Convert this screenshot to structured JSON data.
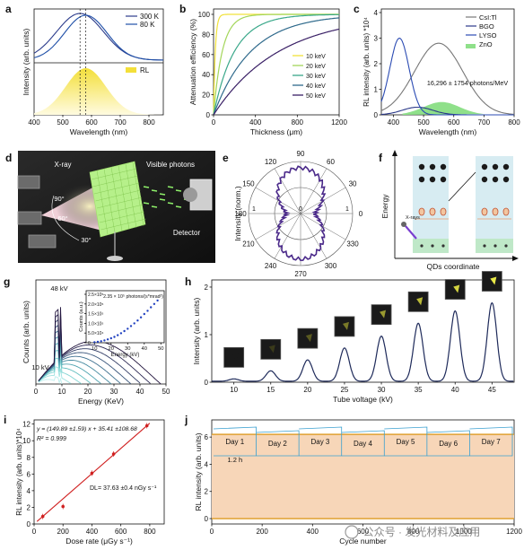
{
  "chart_data": [
    {
      "panel": "a",
      "type": "line",
      "ylabel": "Intensity (arb. units)",
      "xlabel": "Wavelength (nm)",
      "xlim": [
        400,
        850
      ],
      "xticks": [
        "400",
        "500",
        "600",
        "700",
        "800"
      ],
      "legend_top": [
        {
          "name": "300 K",
          "color": "#2d3d8c"
        },
        {
          "name": "80 K",
          "color": "#2050a8"
        }
      ],
      "legend_bottom": [
        {
          "name": "RL",
          "color": "#f3df3a"
        }
      ],
      "series": [
        {
          "name": "300 K",
          "peak": 560,
          "sigma": 82
        },
        {
          "name": "80 K",
          "peak": 580,
          "sigma": 74
        },
        {
          "name": "RL",
          "peak": 580,
          "sigma": 70
        }
      ]
    },
    {
      "panel": "b",
      "type": "line",
      "ylabel": "Attenuation efficiency (%)",
      "xlabel": "Thickness (μm)",
      "xlim": [
        0,
        1200
      ],
      "ylim": [
        0,
        100
      ],
      "xticks": [
        "0",
        "400",
        "800",
        "1200"
      ],
      "yticks": [
        "0",
        "20",
        "40",
        "60",
        "80",
        "100"
      ],
      "series": [
        {
          "name": "10 keV",
          "color": "#f1e23a",
          "mu": 0.06
        },
        {
          "name": "20 keV",
          "color": "#a3d65a",
          "mu": 0.012
        },
        {
          "name": "30 keV",
          "color": "#3aa88a",
          "mu": 0.005
        },
        {
          "name": "40 keV",
          "color": "#2f6a8c",
          "mu": 0.0028
        },
        {
          "name": "50 keV",
          "color": "#3a2066",
          "mu": 0.0016
        }
      ]
    },
    {
      "panel": "c",
      "type": "line",
      "ylabel": "RL intensity (arb. units) *10⁴",
      "xlabel": "Wavelength (nm)",
      "xlim": [
        360,
        800
      ],
      "ylim": [
        0,
        4
      ],
      "xticks": [
        "400",
        "500",
        "600",
        "700",
        "800"
      ],
      "yticks": [
        "0",
        "1",
        "2",
        "3",
        "4"
      ],
      "annotation": "16,296 ± 1754 photons/MeV",
      "series": [
        {
          "name": "CsI:Tl",
          "color": "#777777",
          "peak": 550,
          "height": 2.8,
          "sigma": 80
        },
        {
          "name": "BGO",
          "color": "#2c3a8a",
          "peak": 480,
          "height": 0.3,
          "sigma": 50
        },
        {
          "name": "LYSO",
          "color": "#2b4bb3",
          "peak": 420,
          "height": 3.0,
          "sigma": 32
        },
        {
          "name": "ZnO",
          "color": "#43c35b",
          "peak": 560,
          "height": 0.5,
          "sigma": 60
        }
      ]
    },
    {
      "panel": "d",
      "type": "table",
      "labels": {
        "xray": "X-ray",
        "visible": "Visible photons",
        "detector": "Detector",
        "a90": "90°",
        "a60": "60°",
        "a30": "30°"
      }
    },
    {
      "panel": "e",
      "type": "scatter",
      "ylabel": "Intensity (norm.)",
      "angle_labels": [
        "90",
        "60",
        "30",
        "0",
        "330",
        "300",
        "270",
        "240",
        "210",
        "180",
        "150",
        "120"
      ],
      "radial_ticks": [
        "1",
        "0",
        "1"
      ]
    },
    {
      "panel": "f",
      "type": "table",
      "ylabel": "Energy",
      "xlabel": "QDs coordinate",
      "xray_label": "X-rays"
    },
    {
      "panel": "g",
      "type": "line",
      "ylabel": "Counts (arb. units)",
      "xlabel": "Energy (KeV)",
      "xlim": [
        0,
        50
      ],
      "xticks": [
        "0",
        "10",
        "20",
        "30",
        "40",
        "50"
      ],
      "label_top": "48 kV",
      "label_bottom": "10 kV",
      "inset": {
        "title": "2.35 × 10⁵ photons/(s*mrad²)",
        "xlabel": "Energy (kV)",
        "ylabel": "Counts (a.u.)",
        "xticks": [
          "10",
          "20",
          "30",
          "40",
          "50"
        ],
        "yticks": [
          "0",
          "5.0×10⁴",
          "1.0×10⁵",
          "1.5×10⁵",
          "2.0×10⁵",
          "2.5×10⁵"
        ],
        "x": [
          10,
          12,
          14,
          16,
          18,
          20,
          22,
          24,
          26,
          28,
          30,
          32,
          34,
          36,
          38,
          40,
          42,
          44,
          46,
          48
        ],
        "y": [
          3000,
          5000,
          8000,
          12000,
          17000,
          23000,
          30000,
          39000,
          49000,
          60000,
          72000,
          86000,
          100000,
          115000,
          131000,
          148000,
          165000,
          183000,
          200000,
          218000
        ]
      }
    },
    {
      "panel": "h",
      "type": "line",
      "ylabel": "Intensity (arb. units)",
      "xlabel": "Tube voltage (kV)",
      "xticks": [
        "10",
        "15",
        "20",
        "25",
        "30",
        "35",
        "40",
        "45"
      ],
      "yticks": [
        "0",
        "1",
        "2"
      ],
      "x": [
        10,
        15,
        20,
        25,
        30,
        35,
        40,
        45
      ],
      "values": [
        0.05,
        0.22,
        0.45,
        0.7,
        0.95,
        1.22,
        1.48,
        1.65
      ]
    },
    {
      "panel": "i",
      "type": "scatter",
      "ylabel": "RL intensity (arb. units)*10⁴",
      "xlabel": "Dose rate (μGy s⁻¹)",
      "xlim": [
        0,
        900
      ],
      "ylim": [
        0,
        12.5
      ],
      "xticks": [
        "0",
        "200",
        "400",
        "600",
        "800"
      ],
      "yticks": [
        "0",
        "2",
        "4",
        "6",
        "8",
        "10",
        "12"
      ],
      "eq1": "y = (149.89 ±1.59) x + 35.41 ±108.68",
      "eq2": "R² = 0.999",
      "dl": "DL= 37.63 ±0.4 nGy s⁻¹",
      "x": [
        60,
        200,
        400,
        550,
        780
      ],
      "y": [
        0.9,
        2.1,
        6.1,
        8.4,
        11.8
      ]
    },
    {
      "panel": "j",
      "type": "area",
      "ylabel": "RL intensity (arb. units)",
      "xlabel": "Cycle number",
      "xlim": [
        0,
        1200
      ],
      "ylim": [
        0,
        7
      ],
      "xticks": [
        "0",
        "200",
        "400",
        "600",
        "800",
        "1000",
        "1200"
      ],
      "yticks": [
        "0",
        "2",
        "4",
        "6"
      ],
      "days": [
        "Day 1",
        "Day 2",
        "Day 3",
        "Day 4",
        "Day 5",
        "Day 6",
        "Day 7"
      ],
      "sub_label": "1.2 h",
      "level": 6.2
    }
  ],
  "panel_letters": [
    "a",
    "b",
    "c",
    "d",
    "e",
    "f",
    "g",
    "h",
    "i",
    "j"
  ],
  "watermark": "公众号 · 发光材料及应用"
}
